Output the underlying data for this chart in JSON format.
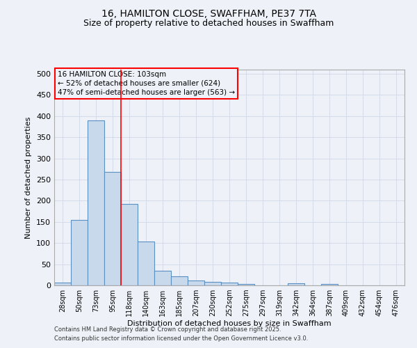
{
  "title1": "16, HAMILTON CLOSE, SWAFFHAM, PE37 7TA",
  "title2": "Size of property relative to detached houses in Swaffham",
  "xlabel": "Distribution of detached houses by size in Swaffham",
  "ylabel": "Number of detached properties",
  "categories": [
    "28sqm",
    "50sqm",
    "73sqm",
    "95sqm",
    "118sqm",
    "140sqm",
    "163sqm",
    "185sqm",
    "207sqm",
    "230sqm",
    "252sqm",
    "275sqm",
    "297sqm",
    "319sqm",
    "342sqm",
    "364sqm",
    "387sqm",
    "409sqm",
    "432sqm",
    "454sqm",
    "476sqm"
  ],
  "values": [
    6,
    155,
    390,
    268,
    193,
    103,
    35,
    22,
    12,
    9,
    6,
    3,
    0,
    0,
    5,
    0,
    3,
    0,
    0,
    0,
    0
  ],
  "bar_color": "#c9d9ec",
  "bar_edge_color": "#5a8fc2",
  "bar_edge_width": 0.8,
  "grid_color": "#d0d8e8",
  "background_color": "#eef2f8",
  "vline_x_index": 3.5,
  "vline_color": "red",
  "annotation_text": "16 HAMILTON CLOSE: 103sqm\n← 52% of detached houses are smaller (624)\n47% of semi-detached houses are larger (563) →",
  "annotation_box_color": "red",
  "ylim": [
    0,
    510
  ],
  "yticks": [
    0,
    50,
    100,
    150,
    200,
    250,
    300,
    350,
    400,
    450,
    500
  ],
  "footer1": "Contains HM Land Registry data © Crown copyright and database right 2025.",
  "footer2": "Contains public sector information licensed under the Open Government Licence v3.0."
}
